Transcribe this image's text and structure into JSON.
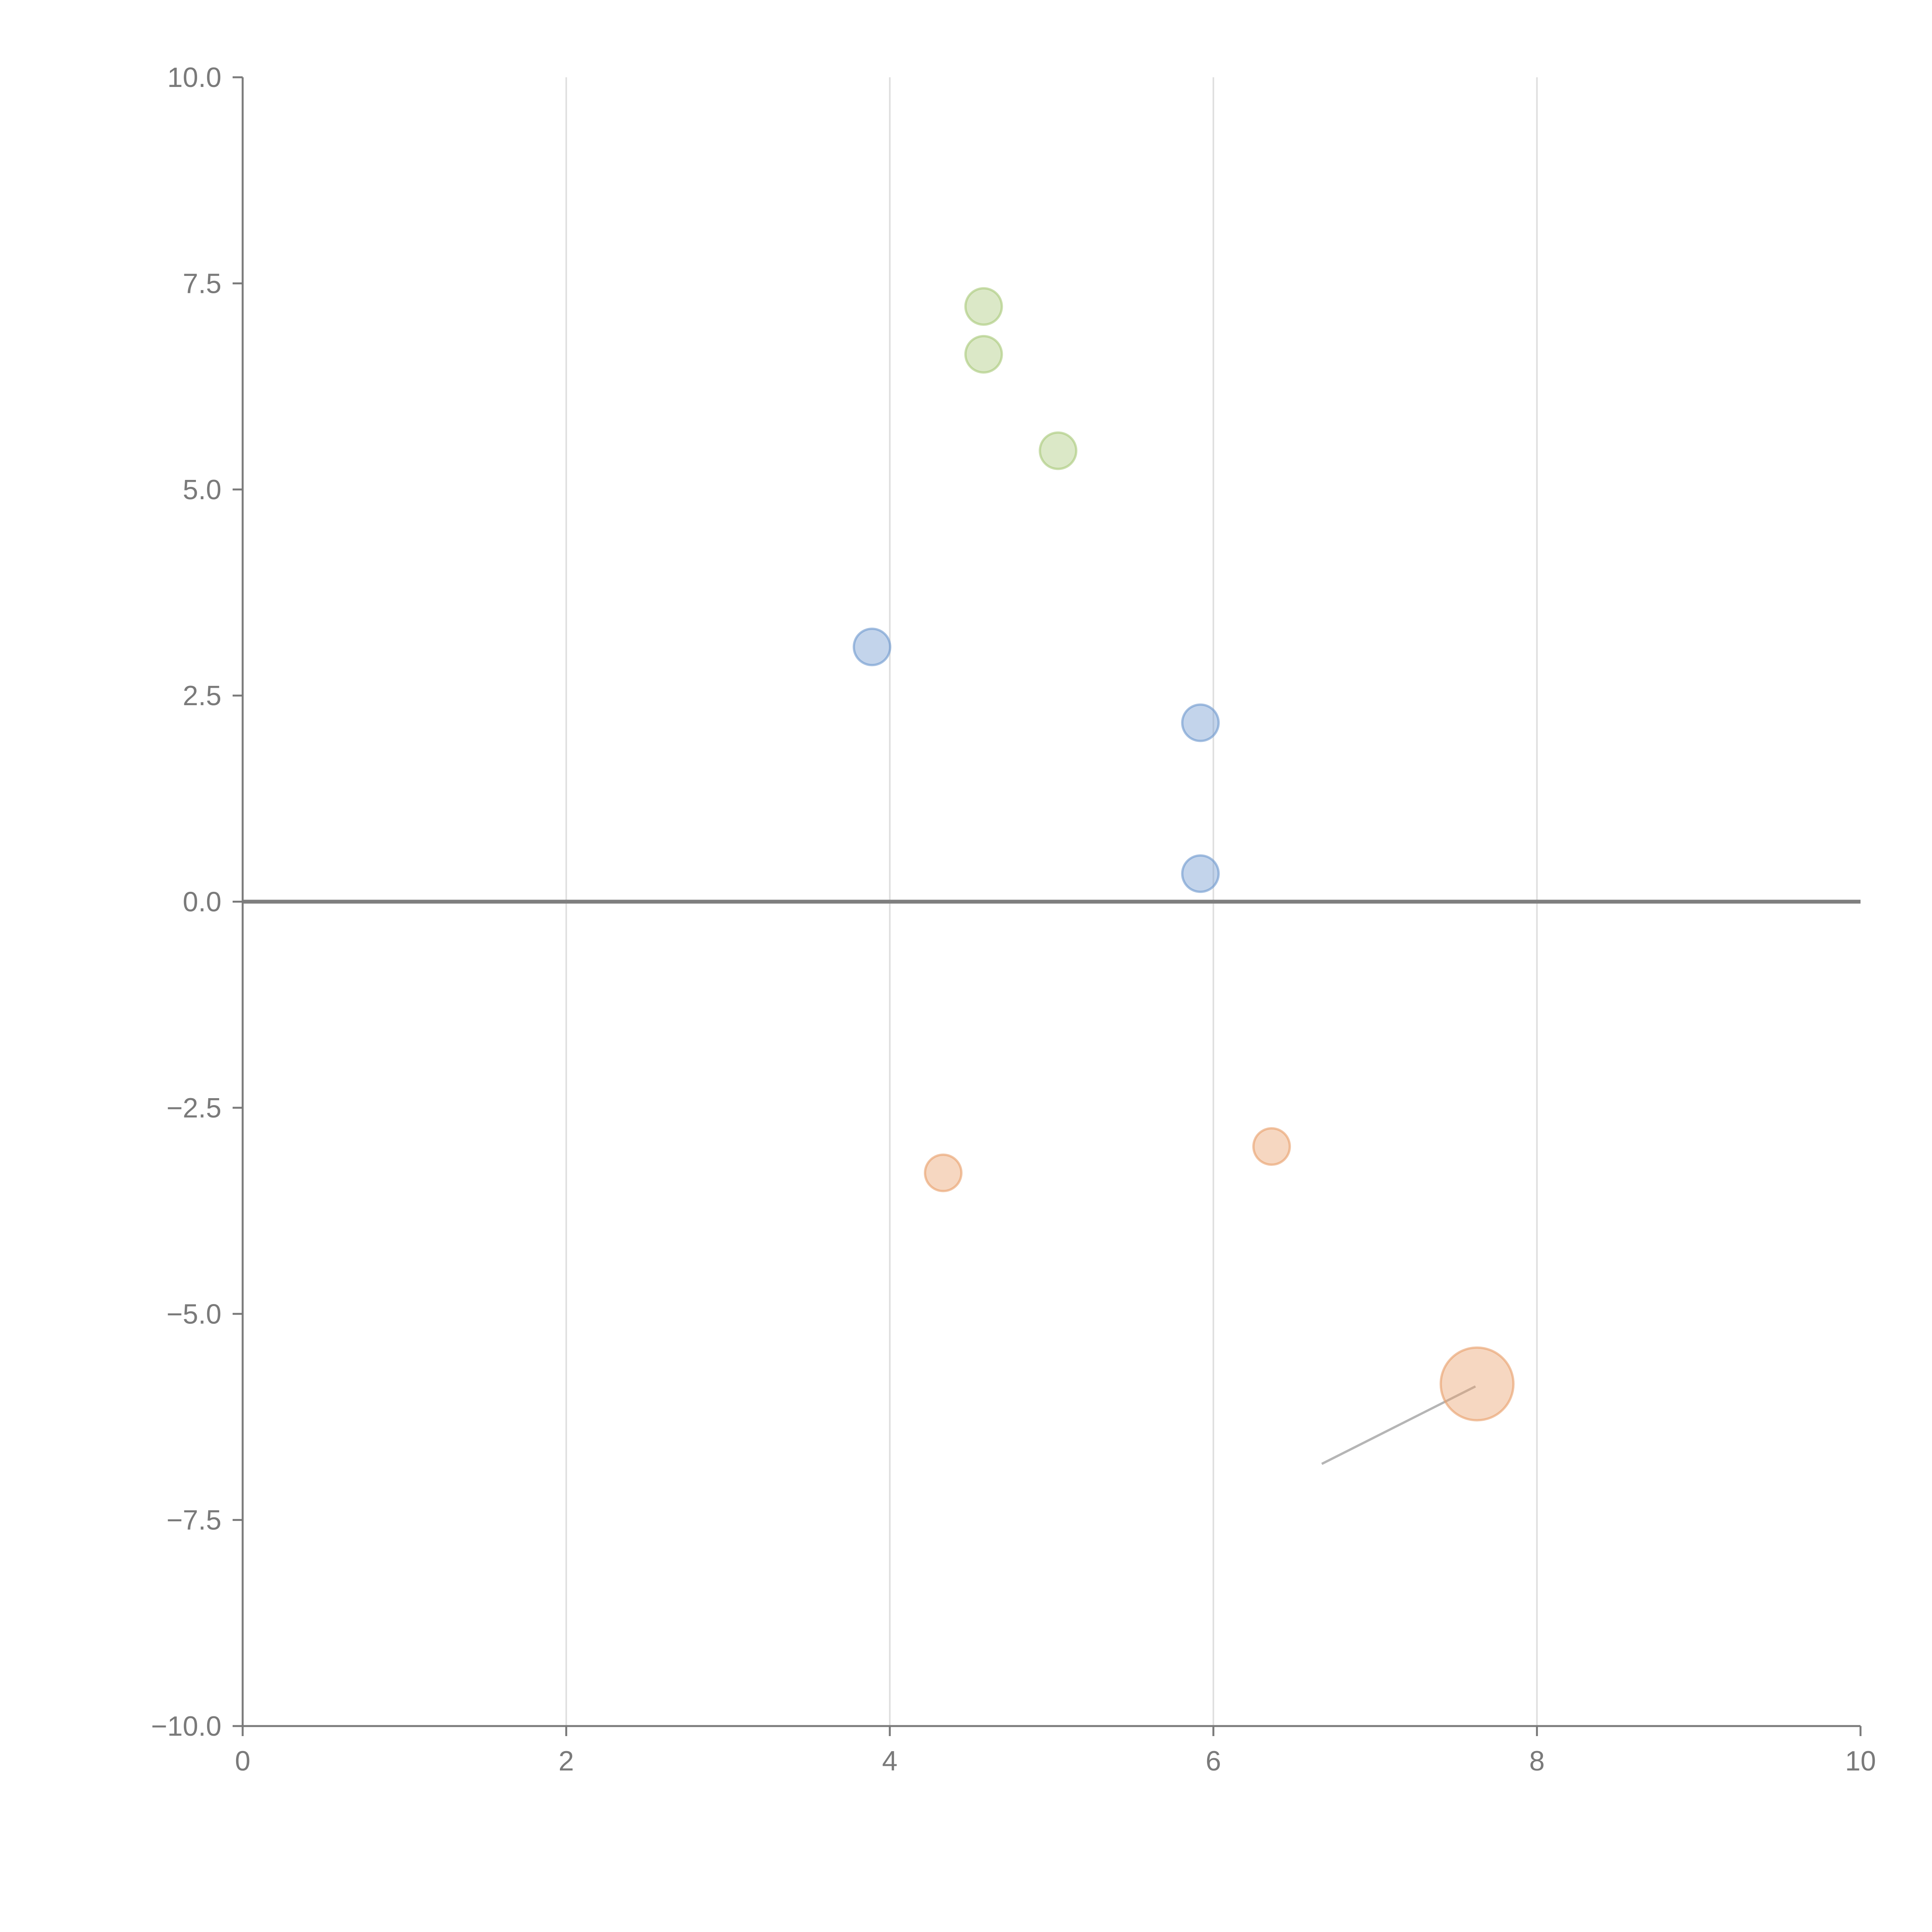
{
  "chart_data": {
    "type": "scatter",
    "title": "",
    "xlabel": "",
    "ylabel": "",
    "xlim": [
      0,
      10
    ],
    "ylim": [
      -10,
      10
    ],
    "grid": "vertical",
    "x_ticks": [
      "0",
      "2",
      "4",
      "6",
      "8",
      "10"
    ],
    "y_ticks": [
      "−10.0",
      "−7.5",
      "−5.0",
      "−2.5",
      "0.0",
      "2.5",
      "5.0",
      "7.5",
      "10.0"
    ],
    "x_tick_values": [
      0,
      2,
      4,
      6,
      8,
      10
    ],
    "y_tick_values": [
      -10,
      -7.5,
      -5,
      -2.5,
      0,
      2.5,
      5,
      7.5,
      10
    ],
    "reference_line": {
      "y": 0
    },
    "series": [
      {
        "name": "green",
        "color": "#a9c97a",
        "points": [
          {
            "x": 4.58,
            "y": 7.22,
            "size": 1
          },
          {
            "x": 4.58,
            "y": 6.64,
            "size": 1
          },
          {
            "x": 5.04,
            "y": 5.47,
            "size": 1
          }
        ]
      },
      {
        "name": "blue",
        "color": "#7099cf",
        "points": [
          {
            "x": 3.89,
            "y": 3.09,
            "size": 1
          },
          {
            "x": 5.92,
            "y": 2.17,
            "size": 1
          },
          {
            "x": 5.92,
            "y": 0.34,
            "size": 1
          }
        ]
      },
      {
        "name": "orange",
        "color": "#e9a06c",
        "points": [
          {
            "x": 4.33,
            "y": -3.29,
            "size": 1
          },
          {
            "x": 6.36,
            "y": -2.97,
            "size": 1
          },
          {
            "x": 7.63,
            "y": -5.85,
            "size": 4
          }
        ]
      }
    ],
    "annotation_lines": [
      {
        "x1": 6.67,
        "y1": -6.82,
        "x2": 7.62,
        "y2": -5.88
      }
    ]
  }
}
